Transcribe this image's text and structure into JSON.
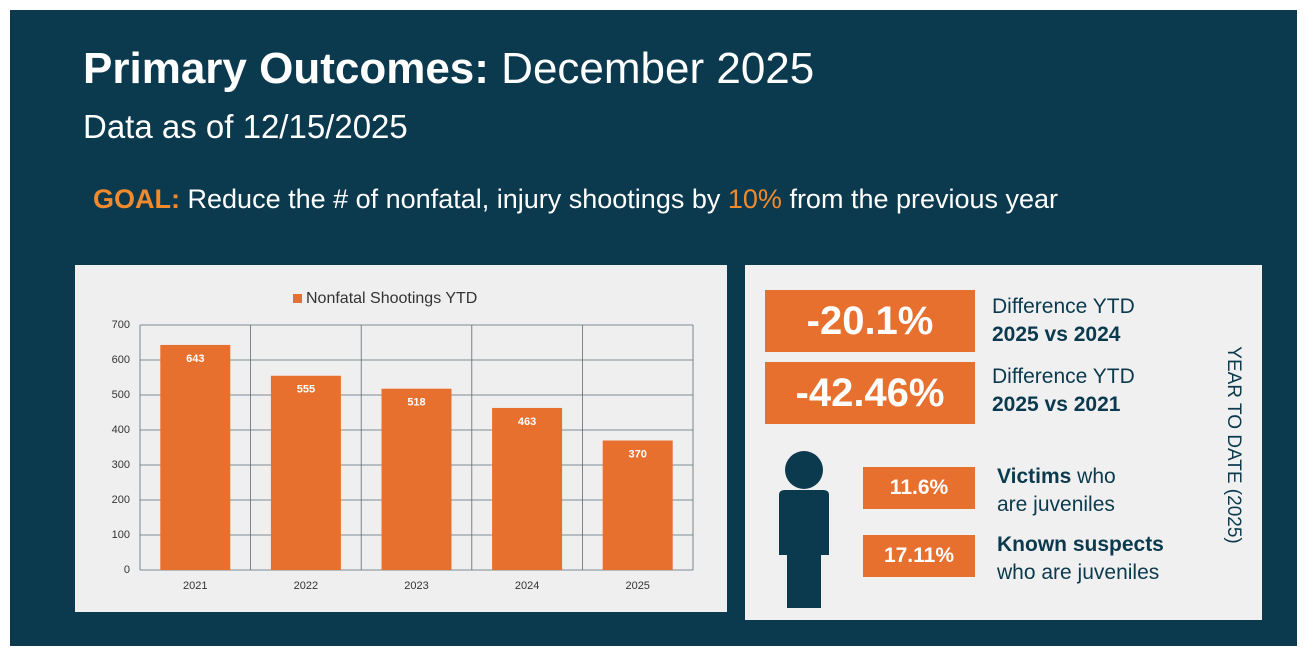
{
  "header": {
    "title_bold": "Primary Outcomes:",
    "title_rest": "December 2025",
    "subtitle": "Data as of 12/15/2025"
  },
  "goal": {
    "label": "GOAL:",
    "text_before": "Reduce the # of nonfatal, injury shootings by",
    "highlight": "10%",
    "text_after": "from the previous year"
  },
  "chart_data": {
    "type": "bar",
    "categories": [
      "2021",
      "2022",
      "2023",
      "2024",
      "2025"
    ],
    "series": [
      {
        "name": "Nonfatal Shootings YTD",
        "color": "#e8702f",
        "values": [
          643,
          555,
          518,
          463,
          370
        ]
      }
    ],
    "ylim": [
      0,
      700
    ],
    "yticks": [
      0,
      100,
      200,
      300,
      400,
      500,
      600,
      700
    ],
    "grid": true,
    "legend": "top"
  },
  "stats": [
    {
      "value": "-20.1%",
      "line1": "Difference YTD",
      "line2": "2025 vs 2024"
    },
    {
      "value": "-42.46%",
      "line1": "Difference YTD",
      "line2": "2025 vs 2021"
    }
  ],
  "juveniles": [
    {
      "value": "11.6%",
      "bold": "Victims",
      "rest": "who",
      "line2": "are juveniles"
    },
    {
      "value": "17.11%",
      "bold": "Known suspects",
      "rest": "",
      "line2": "who are juveniles"
    }
  ],
  "side_label": "YEAR TO DATE (2025)"
}
